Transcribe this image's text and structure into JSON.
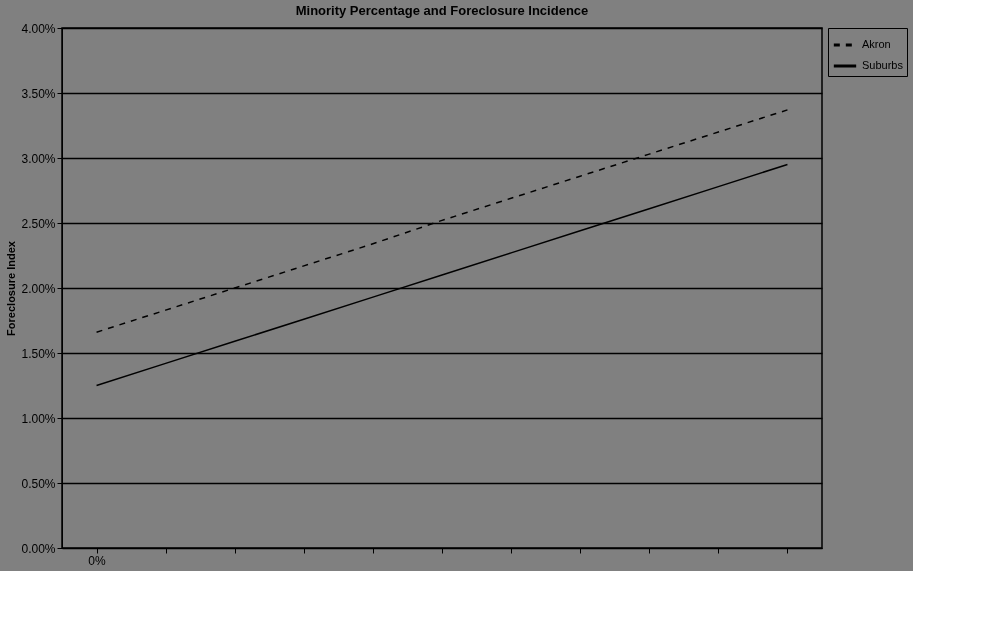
{
  "chart_data": {
    "type": "line",
    "title": "Minority Percentage and Foreclosure Incidence",
    "ylabel": "Foreclosure Index",
    "categories": [
      "0%",
      null,
      null,
      null,
      null,
      null,
      null,
      null,
      null,
      null,
      null
    ],
    "series": [
      {
        "name": "Akron",
        "color": "#000000",
        "line_style": "dashed",
        "values": [
          1.66,
          1.83,
          2.0,
          2.17,
          2.34,
          2.52,
          2.69,
          2.86,
          3.03,
          3.2,
          3.37
        ]
      },
      {
        "name": "Suburbs",
        "color": "#000000",
        "line_style": "solid",
        "values": [
          1.25,
          1.42,
          1.59,
          1.76,
          1.93,
          2.1,
          2.27,
          2.44,
          2.61,
          2.78,
          2.95
        ]
      }
    ],
    "ylim": [
      0,
      4
    ],
    "yticks": [
      {
        "value": 0,
        "label": "0.00%"
      },
      {
        "value": 0.5,
        "label": "0.50%"
      },
      {
        "value": 1,
        "label": "1.00%"
      },
      {
        "value": 1.5,
        "label": "1.50%"
      },
      {
        "value": 2,
        "label": "2.00%"
      },
      {
        "value": 2.5,
        "label": "2.50%"
      },
      {
        "value": 3,
        "label": "3.00%"
      },
      {
        "value": 3.5,
        "label": "3.50%"
      },
      {
        "value": 4,
        "label": "4.00%"
      }
    ],
    "grid": "y",
    "legend": "right",
    "marker": "none"
  }
}
